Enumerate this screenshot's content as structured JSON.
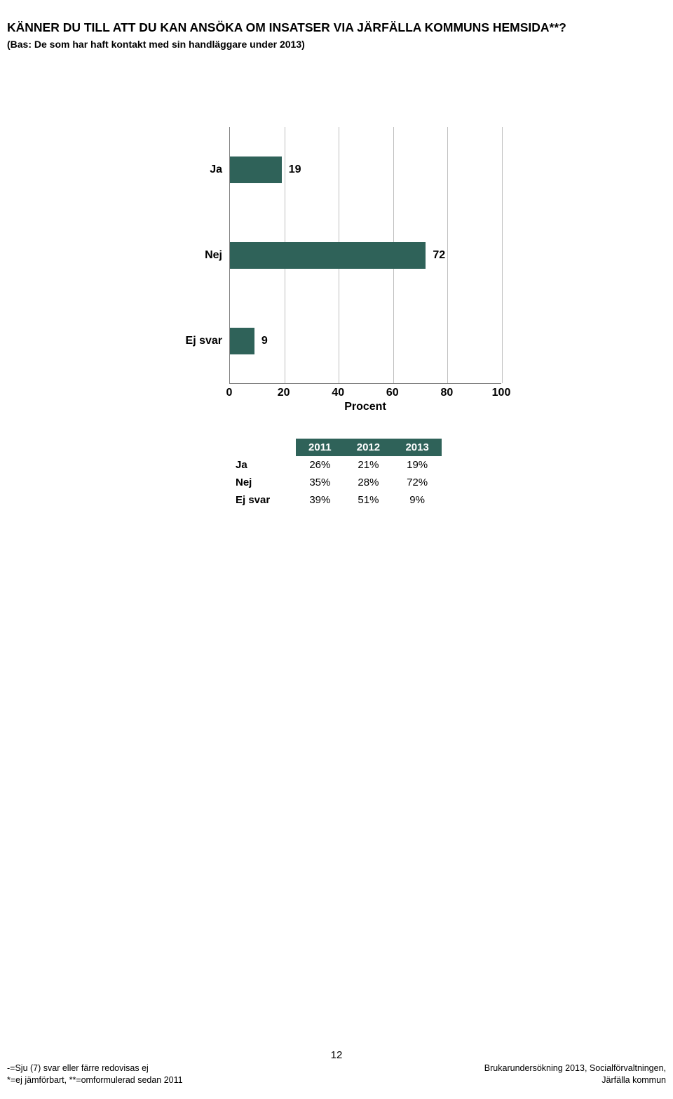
{
  "title": "KÄNNER DU TILL ATT DU KAN ANSÖKA OM INSATSER VIA JÄRFÄLLA KOMMUNS HEMSIDA**?",
  "subtitle": "(Bas: De som har haft kontakt med sin handläggare under 2013)",
  "chart": {
    "type": "bar-horizontal",
    "xlim": [
      0,
      100
    ],
    "xtick_step": 20,
    "xticks": [
      "0",
      "20",
      "40",
      "60",
      "80",
      "100"
    ],
    "xlabel": "Procent",
    "bar_color": "#2f6259",
    "grid_color": "#bfbfbf",
    "axis_color": "#7f7f7f",
    "background_color": "#ffffff",
    "label_fontsize": 16,
    "bar_height_ratio": 0.31,
    "categories": [
      {
        "label": "Ja",
        "value": 19
      },
      {
        "label": "Nej",
        "value": 72
      },
      {
        "label": "Ej svar",
        "value": 9
      }
    ]
  },
  "table": {
    "header_bg": "#2f6259",
    "header_color": "#ffffff",
    "columns": [
      "",
      "2011",
      "2012",
      "2013"
    ],
    "rows": [
      [
        "Ja",
        "26%",
        "21%",
        "19%"
      ],
      [
        "Nej",
        "35%",
        "28%",
        "72%"
      ],
      [
        "Ej svar",
        "39%",
        "51%",
        "9%"
      ]
    ]
  },
  "page_number": "12",
  "footer": {
    "left_line1": "-=Sju (7) svar eller färre redovisas ej",
    "left_line2": "*=ej jämförbart, **=omformulerad sedan 2011",
    "right_line1": "Brukarundersökning 2013, Socialförvaltningen,",
    "right_line2": "Järfälla kommun"
  }
}
